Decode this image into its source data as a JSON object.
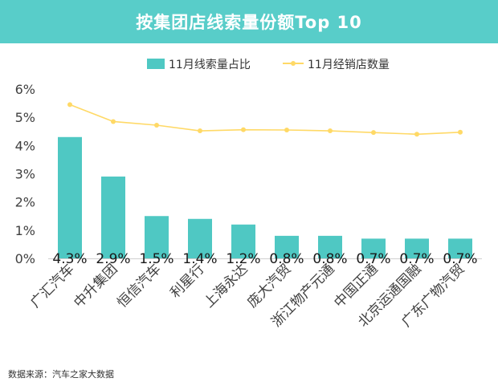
{
  "header": {
    "title": "按集团店线索量份额Top 10"
  },
  "footer": {
    "source": "数据来源：汽车之家大数据"
  },
  "colors": {
    "bar": "#4fc8c3",
    "line": "#ffd966",
    "title_bg": "#58cdc9"
  },
  "chart_data": {
    "type": "bar",
    "title": "按集团店线索量份额Top 10",
    "categories": [
      "广汇汽车",
      "中升集团",
      "恒信汽车",
      "利星行",
      "上海永达",
      "庞大汽贸",
      "浙江物产元通",
      "中国正通",
      "北京运通国融",
      "广东广物汽贸"
    ],
    "series": [
      {
        "name": "11月线索量占比",
        "type": "bar",
        "values": [
          4.3,
          2.9,
          1.5,
          1.4,
          1.2,
          0.8,
          0.8,
          0.7,
          0.7,
          0.7
        ],
        "labels": [
          "4.3%",
          "2.9%",
          "1.5%",
          "1.4%",
          "1.2%",
          "0.8%",
          "0.8%",
          "0.7%",
          "0.7%",
          "0.7%"
        ]
      },
      {
        "name": "11月经销店数量",
        "type": "line",
        "values": [
          5.45,
          4.85,
          4.72,
          4.52,
          4.56,
          4.55,
          4.52,
          4.46,
          4.4,
          4.47
        ]
      }
    ],
    "ylim": [
      0,
      6
    ],
    "yticks": [
      "0%",
      "1%",
      "2%",
      "3%",
      "4%",
      "5%",
      "6%"
    ],
    "legend_position": "top-right",
    "grid": false
  }
}
